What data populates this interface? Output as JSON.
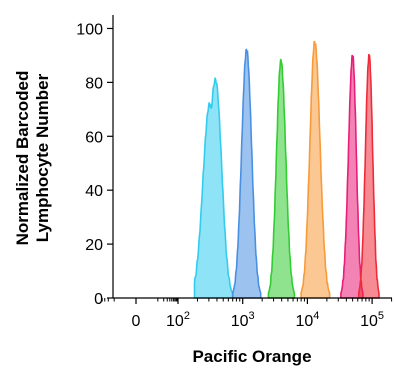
{
  "chart_data": {
    "type": "area",
    "xlabel": "Pacific Orange",
    "ylabel_lines": [
      "Normalized Barcoded",
      "Lymphocyte Number"
    ],
    "x_scale": "biexponential",
    "ylim": [
      0,
      105
    ],
    "yticks": [
      0,
      20,
      40,
      60,
      80,
      100
    ],
    "xticks": [
      {
        "value": 0,
        "base": "0",
        "exp": ""
      },
      {
        "value": 100,
        "base": "10",
        "exp": "2"
      },
      {
        "value": 1000,
        "base": "10",
        "exp": "3"
      },
      {
        "value": 10000,
        "base": "10",
        "exp": "4"
      },
      {
        "value": 100000,
        "base": "10",
        "exp": "5"
      }
    ],
    "series": [
      {
        "color": "#33ccee",
        "x_peak": 380,
        "x_min": 180,
        "x_max": 700,
        "peak": 81,
        "shoulder": 72
      },
      {
        "color": "#4a90e2",
        "x_peak": 1150,
        "x_min": 700,
        "x_max": 1900,
        "peak": 92
      },
      {
        "color": "#33cc33",
        "x_peak": 3900,
        "x_min": 2500,
        "x_max": 6300,
        "peak": 88
      },
      {
        "color": "#f79a3a",
        "x_peak": 13000,
        "x_min": 8000,
        "x_max": 22000,
        "peak": 95
      },
      {
        "color": "#e91e78",
        "x_peak": 50000,
        "x_min": 33000,
        "x_max": 72000,
        "peak": 90
      },
      {
        "color": "#ee2b3b",
        "x_peak": 90000,
        "x_min": 62000,
        "x_max": 128000,
        "peak": 90
      }
    ]
  }
}
